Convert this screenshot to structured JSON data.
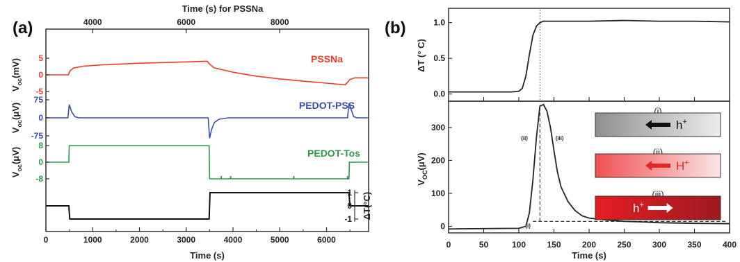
{
  "figure": {
    "panel_a_label": "(a)",
    "panel_b_label": "(b)"
  },
  "chart_data": [
    {
      "type": "line",
      "panel": "(a)",
      "top_axis": {
        "label": "Time (s) for PSSNa",
        "ticks": [
          "4000",
          "6000",
          "8000"
        ]
      },
      "x_axis": {
        "label": "Time (s)",
        "range": [
          0,
          6900
        ],
        "ticks": [
          "0",
          "1000",
          "2000",
          "3000",
          "4000",
          "5000",
          "6000"
        ]
      },
      "series": [
        {
          "name": "PSSNa",
          "color": "#ee3a2a",
          "ylabel": "V_oc(mV)",
          "ylabel_main": "V",
          "ylabel_sub": "oc",
          "ylabel_unit": "(mV)",
          "yticks": [
            "5",
            "0",
            "-5"
          ],
          "ylim": [
            -6,
            6
          ],
          "x": [
            0,
            480,
            520,
            600,
            800,
            1200,
            2000,
            3000,
            3450,
            3500,
            3600,
            4000,
            4500,
            5000,
            5500,
            6000,
            6400,
            6500,
            6600,
            6900
          ],
          "y": [
            0,
            0,
            1.3,
            2.1,
            2.6,
            3.0,
            3.5,
            3.9,
            4.1,
            3.2,
            2.1,
            0.8,
            -0.4,
            -1.2,
            -1.9,
            -2.5,
            -3.0,
            -1.4,
            -0.9,
            -0.9
          ]
        },
        {
          "name": "PEDOT-PSS",
          "color": "#3a4ea8",
          "ylabel": "V_oc(μV)",
          "ylabel_main": "V",
          "ylabel_sub": "oc",
          "ylabel_unit": "(μV)",
          "yticks": [
            "75",
            "0",
            "-75"
          ],
          "ylim": [
            -100,
            100
          ],
          "x": [
            0,
            470,
            500,
            550,
            620,
            700,
            900,
            3470,
            3500,
            3540,
            3600,
            3700,
            3900,
            6450,
            6480,
            6520,
            6580,
            6650,
            6900
          ],
          "y": [
            0,
            0,
            55,
            25,
            5,
            0,
            0,
            0,
            -85,
            -50,
            -20,
            -6,
            0,
            0,
            60,
            40,
            5,
            0,
            0
          ]
        },
        {
          "name": "PEDOT-Tos",
          "color": "#2a9a4a",
          "ylabel": "V_oc(μV)",
          "ylabel_main": "V",
          "ylabel_sub": "oc",
          "ylabel_unit": "(μV)",
          "yticks": [
            "8",
            "0",
            "-8"
          ],
          "ylim": [
            -11,
            11
          ],
          "x": [
            0,
            490,
            500,
            3490,
            3500,
            6480,
            6490,
            6900
          ],
          "y": [
            0,
            0,
            8,
            8,
            -8,
            -8,
            0,
            0
          ]
        },
        {
          "name": "ΔT",
          "color": "#111111",
          "ylabel": "ΔT(°C)",
          "yticks": [
            "1",
            "0",
            "-1"
          ],
          "ylim": [
            -1.5,
            1.5
          ],
          "axis_side": "right",
          "x": [
            0,
            490,
            510,
            3490,
            3510,
            6480,
            6500,
            6900
          ],
          "y": [
            0,
            0,
            -1,
            -1,
            1,
            1,
            0,
            0
          ]
        }
      ]
    },
    {
      "type": "line",
      "panel": "(b)",
      "x_axis": {
        "label": "Time (s)",
        "range": [
          0,
          400
        ],
        "ticks": [
          "0",
          "50",
          "100",
          "150",
          "200",
          "250",
          "300",
          "350",
          "400"
        ]
      },
      "top_plot": {
        "ylabel": "ΔT (° C)",
        "yticks": [
          "0.0",
          "0.5",
          "1.0"
        ],
        "ylim": [
          -0.1,
          1.2
        ],
        "color": "#222222",
        "x": [
          0,
          90,
          100,
          105,
          110,
          115,
          120,
          125,
          130,
          135,
          140,
          160,
          200,
          250,
          300,
          350,
          400
        ],
        "y": [
          0.03,
          0.03,
          0.04,
          0.08,
          0.25,
          0.55,
          0.82,
          0.95,
          1.0,
          1.02,
          1.02,
          1.02,
          1.02,
          1.03,
          1.02,
          1.02,
          1.01
        ]
      },
      "bottom_plot": {
        "ylabel": "V_OC(μV)",
        "ylabel_main": "V",
        "ylabel_sub": "OC",
        "ylabel_unit": "(μV)",
        "yticks": [
          "0",
          "100",
          "200",
          "300"
        ],
        "ylim": [
          -20,
          380
        ],
        "color": "#222222",
        "x": [
          0,
          50,
          100,
          110,
          115,
          120,
          125,
          130,
          135,
          140,
          145,
          150,
          155,
          160,
          170,
          180,
          190,
          200,
          220,
          250,
          280,
          300,
          350,
          400
        ],
        "y": [
          -8,
          -7,
          -6,
          0,
          40,
          140,
          270,
          365,
          370,
          350,
          300,
          230,
          165,
          120,
          75,
          48,
          32,
          25,
          20,
          15,
          13,
          11,
          9,
          8
        ],
        "vline_x": 130,
        "baseline_y": 15,
        "annotations": [
          "(i)",
          "(ii)",
          "(iii)"
        ]
      },
      "insets": [
        {
          "label": "(i)",
          "text": "h",
          "superscript": "+",
          "arrow": "left",
          "arrow_color": "#111111",
          "text_color": "#111111",
          "gradient": [
            "#8f8f8f",
            "#ececec"
          ]
        },
        {
          "label": "(ii)",
          "text": "H",
          "superscript": "+",
          "arrow": "left",
          "arrow_color": "#e02828",
          "text_color": "#e02828",
          "gradient": [
            "#f05050",
            "#fbe4e4"
          ]
        },
        {
          "label": "(iii)",
          "text": "h",
          "superscript": "+",
          "arrow": "right",
          "arrow_color": "#ffffff",
          "text_color": "#ffffff",
          "gradient": [
            "#e41e24",
            "#9e1a1f"
          ]
        }
      ]
    }
  ]
}
